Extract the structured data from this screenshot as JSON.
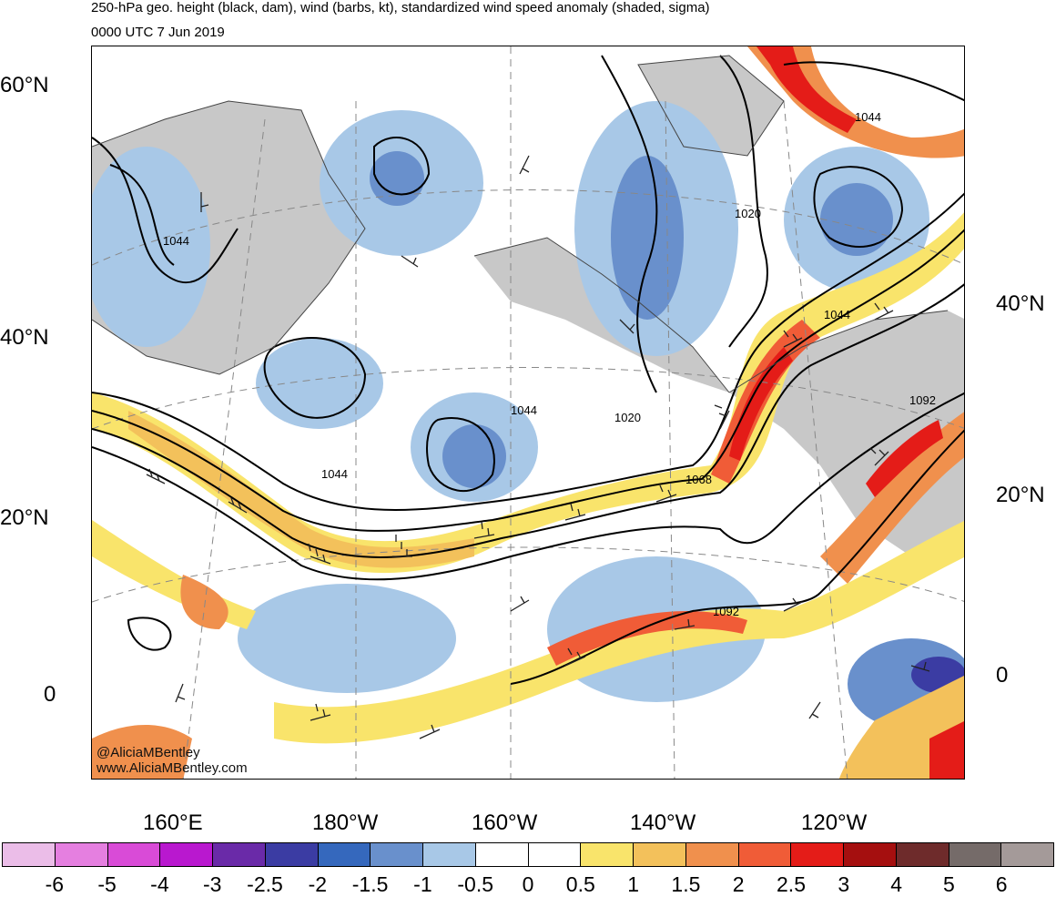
{
  "header": {
    "title": "250-hPa geo. height (black, dam), wind (barbs, kt), standardized wind speed anomaly (shaded, sigma)",
    "subtitle": "0000 UTC 7 Jun 2019"
  },
  "map": {
    "lat_labels_left": [
      "60°N",
      "40°N",
      "20°N",
      "0"
    ],
    "lat_labels_right": [
      "40°N",
      "20°N",
      "0"
    ],
    "lon_labels": [
      "160°E",
      "180°W",
      "160°W",
      "140°W",
      "120°W"
    ],
    "contour_labels": [
      "1044",
      "1044",
      "1020",
      "1044",
      "1044",
      "1044",
      "1020",
      "1068",
      "1092",
      "1092"
    ],
    "credit_handle": "@AliciaMBentley",
    "credit_url": "www.AliciaMBentley.com"
  },
  "colorbar": {
    "colors": [
      "#ebbde8",
      "#e57fe0",
      "#d94bd7",
      "#b918cf",
      "#6a2aa8",
      "#3b3ca3",
      "#3568bd",
      "#6990cc",
      "#a8c8e7",
      "#ffffff",
      "#ffffff",
      "#f9e46b",
      "#f3c15b",
      "#f0904d",
      "#f05c37",
      "#e41c18",
      "#a50f0f",
      "#6e2b2b",
      "#756b69",
      "#a49a99"
    ],
    "labels": [
      "-6",
      "-5",
      "-4",
      "-3",
      "-2.5",
      "-2",
      "-1.5",
      "-1",
      "-0.5",
      "0",
      "0.5",
      "1",
      "1.5",
      "2",
      "2.5",
      "3",
      "4",
      "5",
      "6"
    ]
  }
}
